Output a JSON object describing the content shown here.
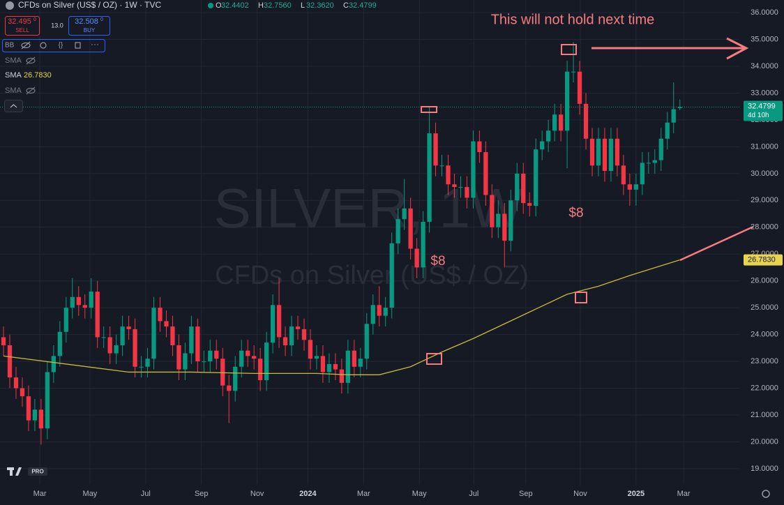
{
  "header": {
    "symbol": "CFDs on Silver (US$ / OZ) · 1W · TVC",
    "ohlc": [
      {
        "label": "O",
        "value": "32.4402"
      },
      {
        "label": "H",
        "value": "32.7560"
      },
      {
        "label": "L",
        "value": "32.3620"
      },
      {
        "label": "C",
        "value": "32.4799"
      }
    ]
  },
  "trade": {
    "sell_price": "32.495",
    "sell_sup": "0",
    "sell_label": "SELL",
    "spread": "13.0",
    "buy_price": "32.508",
    "buy_sup": "0",
    "buy_label": "BUY"
  },
  "indicators": [
    {
      "name": "BB"
    },
    {
      "name": "SMA"
    },
    {
      "name": "SMA",
      "value": "26.7830"
    },
    {
      "name": "SMA"
    }
  ],
  "watermark": [
    "SILVER, 1W",
    "CFDs on Silver (US$ / OZ)"
  ],
  "logo_badge": "PRO",
  "chart_data": {
    "type": "candlestick",
    "open": [
      23.9,
      23.6,
      22.4,
      22.0,
      21.7,
      20.8,
      21.2,
      20.5,
      22.6,
      23.2,
      24.1,
      25.0,
      25.4,
      25.1,
      25.0,
      25.6,
      23.9,
      23.9,
      23.3,
      23.6,
      24.3,
      24.2,
      22.8,
      22.8,
      23.1,
      25.0,
      24.5,
      24.3,
      23.6,
      22.7,
      23.3,
      24.3,
      23.0,
      23.0,
      23.4,
      23.1,
      22.1,
      21.9,
      22.8,
      23.4,
      23.2,
      23.1,
      22.3,
      23.7,
      25.1,
      23.9,
      23.6,
      24.3,
      24.2,
      23.8,
      23.1,
      23.2,
      22.6,
      22.9,
      22.7,
      22.2,
      23.4,
      22.8,
      23.1,
      24.4,
      25.1,
      24.7,
      25.0,
      27.4,
      28.3,
      28.7,
      27.2,
      26.5,
      28.2,
      31.5,
      30.3,
      30.3,
      29.6,
      29.5,
      29.5,
      29.1,
      31.2,
      30.8,
      29.2,
      28.0,
      28.5,
      27.5,
      29.0,
      30.0,
      28.9,
      28.8,
      30.9,
      31.2,
      31.6,
      32.2,
      31.6,
      33.8,
      33.8,
      32.6,
      31.3,
      30.3,
      31.3,
      30.1,
      31.3,
      30.3,
      29.6,
      29.4,
      29.6,
      30.4,
      30.4,
      30.5,
      31.3,
      31.9,
      32.4402
    ],
    "high": [
      24.3,
      24.0,
      22.8,
      22.4,
      22.1,
      21.6,
      21.6,
      23.0,
      23.6,
      24.5,
      25.4,
      26.1,
      25.8,
      25.5,
      26.1,
      26.0,
      24.3,
      24.3,
      24.0,
      24.7,
      24.7,
      24.6,
      23.2,
      23.5,
      25.4,
      25.4,
      24.9,
      24.7,
      24.0,
      23.7,
      24.7,
      24.6,
      23.4,
      23.8,
      23.8,
      23.5,
      22.5,
      23.2,
      23.8,
      23.8,
      23.6,
      23.5,
      24.1,
      25.5,
      26.1,
      24.3,
      24.7,
      24.7,
      24.6,
      24.2,
      23.6,
      23.6,
      23.3,
      23.3,
      23.1,
      23.8,
      23.8,
      23.5,
      24.8,
      25.5,
      25.8,
      25.4,
      27.8,
      28.7,
      29.8,
      29.1,
      27.6,
      28.6,
      32.5,
      31.9,
      30.7,
      30.7,
      30.0,
      29.9,
      29.9,
      31.6,
      31.6,
      31.2,
      29.6,
      29.0,
      28.9,
      29.4,
      30.4,
      30.4,
      29.3,
      31.3,
      31.6,
      32.0,
      32.6,
      32.6,
      34.2,
      34.9,
      34.2,
      33.0,
      31.7,
      31.7,
      31.7,
      31.7,
      31.7,
      30.7,
      30.0,
      30.0,
      30.8,
      30.8,
      30.9,
      31.7,
      32.3,
      33.4,
      32.756
    ],
    "low": [
      23.2,
      22.0,
      21.6,
      21.3,
      20.4,
      20.4,
      19.9,
      20.1,
      22.2,
      22.8,
      23.7,
      24.6,
      24.7,
      24.6,
      24.6,
      23.5,
      23.5,
      22.9,
      22.9,
      23.2,
      23.8,
      22.4,
      22.4,
      22.4,
      22.7,
      24.1,
      23.9,
      23.2,
      22.3,
      22.3,
      22.9,
      22.6,
      22.6,
      22.6,
      22.7,
      21.7,
      20.7,
      21.5,
      22.4,
      22.8,
      22.7,
      21.9,
      21.9,
      23.3,
      23.5,
      23.2,
      23.2,
      23.8,
      23.4,
      22.7,
      22.7,
      22.2,
      22.2,
      22.3,
      21.8,
      21.8,
      22.4,
      22.4,
      22.7,
      24.0,
      24.3,
      24.3,
      24.6,
      27.0,
      27.9,
      26.8,
      26.1,
      26.1,
      27.8,
      29.9,
      29.9,
      29.2,
      29.1,
      29.1,
      28.7,
      28.7,
      30.4,
      28.8,
      27.6,
      27.6,
      26.5,
      27.1,
      28.6,
      28.5,
      28.4,
      28.4,
      30.5,
      30.8,
      31.2,
      31.2,
      30.2,
      33.4,
      32.2,
      30.9,
      29.9,
      29.9,
      29.7,
      29.7,
      29.9,
      29.2,
      28.8,
      28.8,
      29.2,
      30.0,
      30.0,
      30.1,
      30.9,
      31.5,
      32.362
    ],
    "close": [
      23.6,
      22.4,
      22.0,
      21.7,
      20.8,
      21.2,
      20.5,
      22.6,
      23.2,
      24.1,
      25.0,
      25.4,
      25.1,
      25.0,
      25.6,
      23.9,
      23.9,
      23.3,
      23.6,
      24.3,
      24.2,
      22.8,
      22.8,
      23.1,
      25.0,
      24.5,
      24.3,
      23.6,
      22.7,
      23.3,
      24.3,
      23.0,
      23.0,
      23.4,
      23.1,
      22.1,
      21.9,
      22.8,
      23.4,
      23.2,
      23.1,
      22.3,
      23.7,
      25.1,
      23.9,
      23.6,
      24.3,
      24.2,
      23.8,
      23.1,
      23.2,
      22.6,
      22.9,
      22.7,
      22.2,
      23.4,
      22.8,
      23.1,
      24.4,
      25.1,
      24.7,
      25.0,
      27.4,
      28.3,
      28.7,
      27.2,
      26.5,
      28.2,
      31.5,
      30.3,
      30.3,
      29.6,
      29.5,
      29.5,
      29.1,
      31.2,
      30.8,
      29.2,
      28.0,
      28.5,
      27.5,
      29.0,
      30.0,
      28.9,
      28.8,
      30.9,
      31.2,
      31.6,
      32.2,
      31.6,
      33.8,
      33.8,
      32.6,
      31.3,
      30.3,
      31.3,
      30.1,
      31.3,
      30.3,
      29.6,
      29.4,
      29.6,
      30.4,
      30.4,
      30.5,
      31.3,
      31.9,
      32.4,
      32.4799
    ],
    "up_color": "#089981",
    "down_color": "#f23645",
    "series": [
      {
        "name": "SMA",
        "color": "#c9b93a",
        "x": [
          0,
          10,
          20,
          30,
          40,
          50,
          55,
          60,
          65,
          70,
          75,
          80,
          85,
          90,
          95,
          100,
          108
        ],
        "values": [
          23.2,
          22.9,
          22.6,
          22.6,
          22.55,
          22.55,
          22.5,
          22.5,
          22.8,
          23.35,
          23.85,
          24.4,
          24.95,
          25.5,
          25.8,
          26.2,
          26.783
        ]
      }
    ],
    "sma_label": "26.7830",
    "countdown": "4d 10h",
    "xlim": [
      -0.56,
      117.5
    ],
    "ylim": [
      18.4,
      36.47
    ],
    "xticks": [
      {
        "value": 5.8,
        "label": "Mar"
      },
      {
        "value": 13.8,
        "label": "May"
      },
      {
        "value": 22.7,
        "label": "Jul"
      },
      {
        "value": 31.6,
        "label": "Sep"
      },
      {
        "value": 40.5,
        "label": "Nov"
      },
      {
        "value": 48.6,
        "label": "2024"
      },
      {
        "value": 57.5,
        "label": "Mar"
      },
      {
        "value": 66.4,
        "label": "May"
      },
      {
        "value": 75.1,
        "label": "Jul"
      },
      {
        "value": 83.4,
        "label": "Sep"
      },
      {
        "value": 92.1,
        "label": "Nov"
      },
      {
        "value": 101,
        "label": "2025"
      },
      {
        "value": 108.6,
        "label": "Mar"
      }
    ],
    "yticks": [
      {
        "value": 19,
        "label": "19.0000"
      },
      {
        "value": 20,
        "label": "20.0000"
      },
      {
        "value": 21,
        "label": "21.0000"
      },
      {
        "value": 22,
        "label": "22.0000"
      },
      {
        "value": 23,
        "label": "23.0000"
      },
      {
        "value": 24,
        "label": "24.0000"
      },
      {
        "value": 25,
        "label": "25.0000"
      },
      {
        "value": 26,
        "label": "26.0000"
      },
      {
        "value": 27,
        "label": "27.0000"
      },
      {
        "value": 28,
        "label": "28.0000"
      },
      {
        "value": 29,
        "label": "29.0000"
      },
      {
        "value": 30,
        "label": "30.0000"
      },
      {
        "value": 31,
        "label": "31.0000"
      },
      {
        "value": 32,
        "label": "32.0000"
      },
      {
        "value": 33,
        "label": "33.0000"
      },
      {
        "value": 34,
        "label": "34.0000"
      },
      {
        "value": 35,
        "label": "35.0000"
      },
      {
        "value": 36,
        "label": "36.0000"
      }
    ],
    "grid": true,
    "annotations": [
      {
        "text": "This will not hold next time"
      },
      {
        "text": "$8"
      },
      {
        "text": "$8"
      }
    ]
  }
}
